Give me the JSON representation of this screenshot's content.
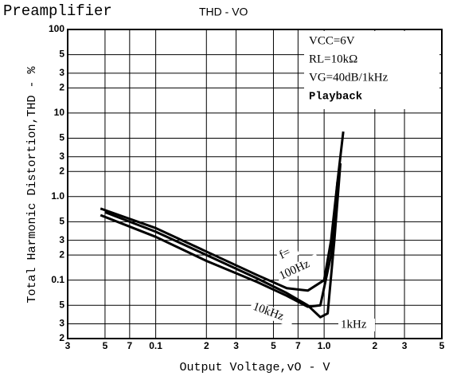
{
  "chart_data": {
    "type": "line",
    "title": "Preamplifier",
    "subtitle": "THD - VO",
    "x_label": "Output Voltage,vO - V",
    "y_label": "Total Harmonic Distortion,THD - %",
    "log_x": true,
    "log_y": true,
    "grid": true,
    "xlim": [
      0.03,
      5
    ],
    "ylim": [
      0.02,
      100
    ],
    "xticks": [
      {
        "value": 0.03,
        "label": "3"
      },
      {
        "value": 0.05,
        "label": "5"
      },
      {
        "value": 0.07,
        "label": "7"
      },
      0.1,
      {
        "value": 0.2,
        "label": "2"
      },
      {
        "value": 0.3,
        "label": "3"
      },
      {
        "value": 0.5,
        "label": "5"
      },
      {
        "value": 0.7,
        "label": "7"
      },
      {
        "value": 1,
        "label": "1.0"
      },
      2,
      3,
      5
    ],
    "yticks": [
      100,
      {
        "value": 50,
        "label": "5"
      },
      {
        "value": 30,
        "label": "3"
      },
      {
        "value": 20,
        "label": "2"
      },
      10,
      5,
      3,
      2,
      {
        "value": 1,
        "label": "1.0"
      },
      {
        "value": 0.5,
        "label": "5"
      },
      {
        "value": 0.3,
        "label": "3"
      },
      {
        "value": 0.2,
        "label": "2"
      },
      0.1,
      {
        "value": 0.05,
        "label": "5"
      },
      {
        "value": 0.03,
        "label": "3"
      },
      {
        "value": 0.02,
        "label": "2"
      }
    ],
    "conditions": [
      "VCC=6V",
      "RL=10kΩ",
      "VG=40dB/1kHz",
      "Playback"
    ],
    "annotations": [
      "f=",
      "100Hz",
      "10kHz",
      "1kHz"
    ],
    "series": [
      {
        "name": "100Hz",
        "color": "#000000",
        "x": [
          0.047,
          0.1,
          0.2,
          0.4,
          0.6,
          0.8,
          1.0,
          1.1,
          1.2,
          1.3
        ],
        "values": [
          0.72,
          0.42,
          0.22,
          0.115,
          0.08,
          0.075,
          0.1,
          0.3,
          1.5,
          6
        ]
      },
      {
        "name": "1kHz",
        "color": "#000000",
        "x": [
          0.05,
          0.1,
          0.2,
          0.4,
          0.6,
          0.8,
          0.95,
          1.05,
          1.15,
          1.25
        ],
        "values": [
          0.65,
          0.38,
          0.2,
          0.105,
          0.07,
          0.05,
          0.036,
          0.04,
          0.3,
          2.5
        ]
      },
      {
        "name": "10kHz",
        "color": "#000000",
        "x": [
          0.047,
          0.1,
          0.2,
          0.4,
          0.6,
          0.8,
          0.95,
          1.1,
          1.2
        ],
        "values": [
          0.6,
          0.33,
          0.17,
          0.095,
          0.065,
          0.048,
          0.05,
          0.2,
          1.5
        ]
      }
    ]
  }
}
